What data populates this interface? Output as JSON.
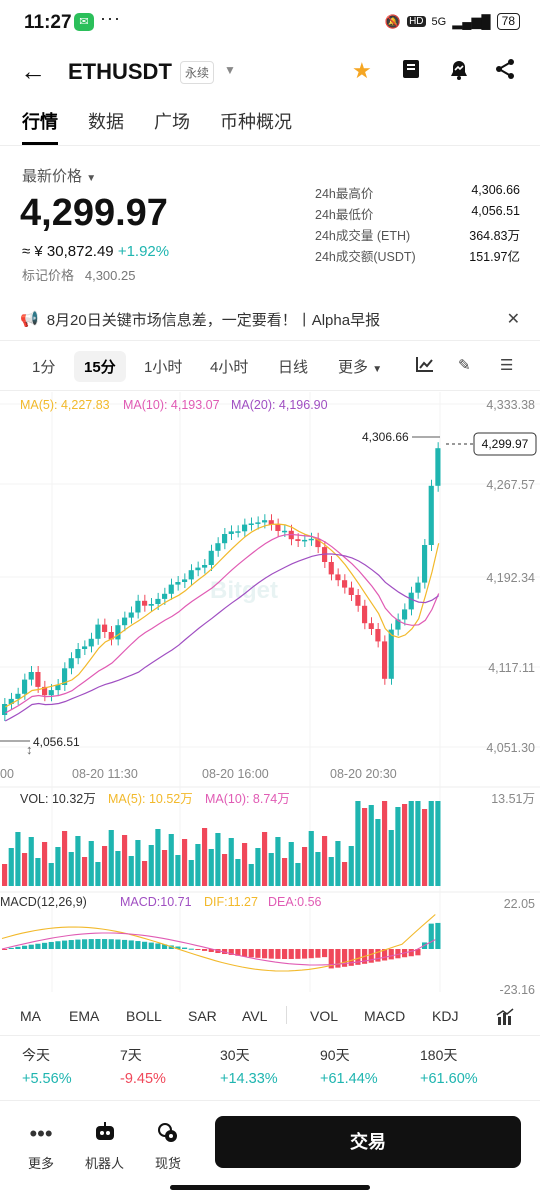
{
  "status_bar": {
    "time": "11:27",
    "battery": "78",
    "network": "5G",
    "hd": "HD"
  },
  "header": {
    "symbol": "ETHUSDT",
    "contract_type": "永续"
  },
  "tabs": [
    "行情",
    "数据",
    "广场",
    "币种概况"
  ],
  "price": {
    "label": "最新价格",
    "last": "4,299.97",
    "cny": "≈ ¥ 30,872.49",
    "change": "+1.92%",
    "mark_label": "标记价格",
    "mark_value": "4,300.25"
  },
  "stats": [
    {
      "label": "24h最高价",
      "value": "4,306.66"
    },
    {
      "label": "24h最低价",
      "value": "4,056.51"
    },
    {
      "label": "24h成交量 (ETH)",
      "value": "364.83万"
    },
    {
      "label": "24h成交额(USDT)",
      "value": "151.97亿"
    }
  ],
  "news": {
    "text": "8月20日关键市场信息差，一定要看！丨Alpha早报"
  },
  "intervals": [
    "1分",
    "15分",
    "1小时",
    "4小时",
    "日线",
    "更多"
  ],
  "active_interval": "15分",
  "chart": {
    "ma_legend": {
      "ma5": "MA(5): 4,227.83",
      "ma10": "MA(10): 4,193.07",
      "ma20": "MA(20): 4,196.90"
    },
    "y_ticks": [
      "4,333.38",
      "4,267.57",
      "4,192.34",
      "4,117.11",
      "4,051.30"
    ],
    "x_ticks": [
      "00",
      "08-20 11:30",
      "08-20 16:00",
      "08-20 20:30"
    ],
    "high_marker": "4,306.66",
    "low_marker": "4,056.51",
    "current_price_tag": "4,299.97",
    "watermark": "Bitget",
    "colors": {
      "up": "#1fb5b0",
      "down": "#f0485a",
      "ma5": "#f2b92b",
      "ma10": "#e05bb4",
      "ma20": "#a04fc2"
    },
    "vol_legend": {
      "vol": "VOL: 10.32万",
      "ma5": "MA(5): 10.52万",
      "ma10": "MA(10): 8.74万"
    },
    "vol_max": "13.51万",
    "macd_legend": {
      "title": "MACD(12,26,9)",
      "macd": "MACD:10.71",
      "dif": "DIF:11.27",
      "dea": "DEA:0.56"
    },
    "macd_top": "22.05",
    "macd_bottom": "-23.16"
  },
  "indicators": [
    "MA",
    "EMA",
    "BOLL",
    "SAR",
    "AVL",
    "VOL",
    "MACD",
    "KDJ"
  ],
  "performance": [
    {
      "period": "今天",
      "value": "+5.56%",
      "dir": "up"
    },
    {
      "period": "7天",
      "value": "-9.45%",
      "dir": "down"
    },
    {
      "period": "30天",
      "value": "+14.33%",
      "dir": "up"
    },
    {
      "period": "90天",
      "value": "+61.44%",
      "dir": "up"
    },
    {
      "period": "180天",
      "value": "+61.60%",
      "dir": "up"
    }
  ],
  "bottom_nav": {
    "more": "更多",
    "bot": "机器人",
    "spot": "现货",
    "trade": "交易"
  }
}
